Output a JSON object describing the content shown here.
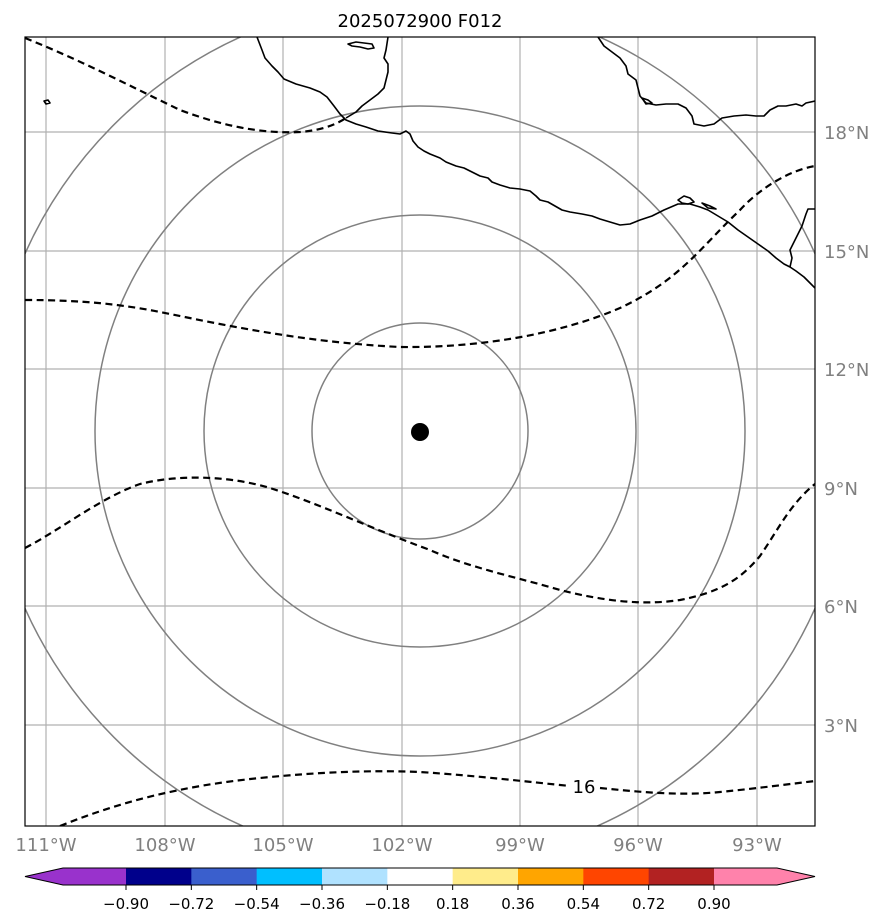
{
  "title": "2025072900 F012",
  "lat_labels": [
    "18°N",
    "15°N",
    "12°N",
    "9°N",
    "6°N",
    "3°N"
  ],
  "lon_labels": [
    "111°W",
    "108°W",
    "105°W",
    "102°W",
    "99°W",
    "96°W",
    "93°W"
  ],
  "contour_label": "16",
  "colorbar": {
    "tick_labels": [
      "−0.90",
      "−0.72",
      "−0.54",
      "−0.36",
      "−0.18",
      "0.18",
      "0.36",
      "0.54",
      "0.72",
      "0.90"
    ],
    "colors": [
      "#9932cc",
      "#00008b",
      "#3a5fcd",
      "#00bfff",
      "#b0e2ff",
      "#ffffff",
      "#ffec8b",
      "#ffa500",
      "#ff4500",
      "#b22222",
      "#ff82ab"
    ]
  },
  "colors": {
    "grid": "#b0b0b0",
    "range_rings": "#808080",
    "coastline": "#000000",
    "contour": "#000000",
    "center_marker": "#000000"
  }
}
